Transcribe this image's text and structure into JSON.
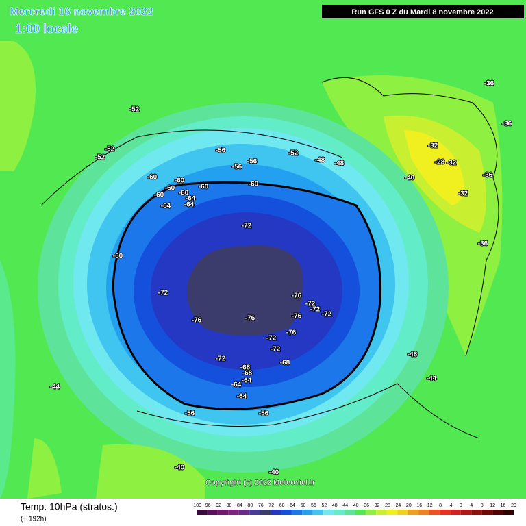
{
  "header": {
    "date": "Mercredi 16 novembre 2022",
    "time": "1:00 locale",
    "run": "Run GFS 0 Z du Mardi 8 novembre 2022"
  },
  "footer": {
    "parameter": "Temp. 10hPa (stratos.)",
    "lead": "(+ 192h)",
    "copyright": "Copyright (c) 2022 Meteociel.fr"
  },
  "colorbar": {
    "ticks": [
      -100,
      -96,
      -92,
      -88,
      -84,
      -80,
      -76,
      -72,
      -68,
      -64,
      -60,
      -56,
      -52,
      -48,
      -44,
      -40,
      -36,
      -32,
      -28,
      -24,
      -20,
      -16,
      -12,
      -8,
      -4,
      0,
      4,
      8,
      12,
      16,
      20
    ]
  },
  "contour_labels": [
    -72,
    -72,
    -76,
    -76,
    -76,
    -76,
    -76,
    -72,
    -72,
    -72,
    -72,
    -72,
    -72,
    -68,
    -68,
    -68,
    -64,
    -64,
    -64,
    -56,
    -56,
    -60,
    -60,
    -60,
    -60,
    -60,
    -60,
    -60,
    -64,
    -64,
    -64,
    -60,
    -56,
    -56,
    -56,
    -52,
    -52,
    -52,
    -52,
    -48,
    -48,
    -48,
    -44,
    -40,
    -36,
    -36,
    -32,
    -32,
    -28,
    -32,
    -36,
    -36,
    -44,
    -40,
    -40
  ]
}
